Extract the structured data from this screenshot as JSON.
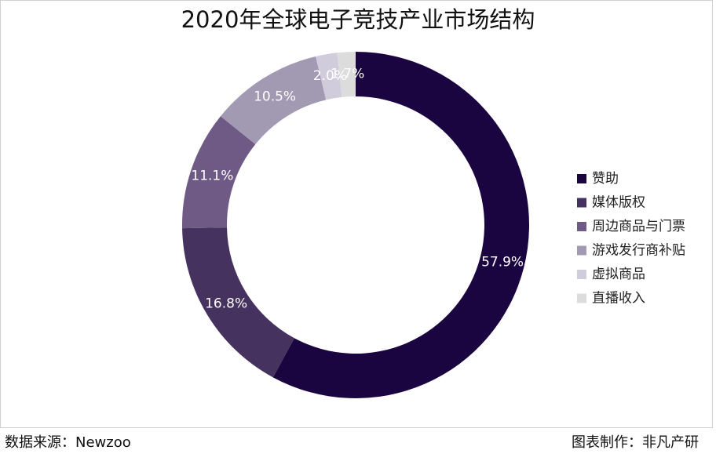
{
  "chart_data": {
    "type": "pie",
    "donut": true,
    "title": "2020年全球电子竞技产业市场结构",
    "categories": [
      "赞助",
      "媒体版权",
      "周边商品与门票",
      "游戏发行商补贴",
      "虚拟商品",
      "直播收入"
    ],
    "values": [
      57.9,
      16.8,
      11.1,
      10.5,
      2.0,
      1.7
    ],
    "value_labels": [
      "57.9%",
      "16.8%",
      "11.1%",
      "10.5%",
      "2.0%",
      "1.7%"
    ],
    "colors": [
      "#1a0540",
      "#45325f",
      "#6e5a85",
      "#a299b3",
      "#d1ccdc",
      "#dcdcdc"
    ],
    "legend": "right"
  },
  "footer": {
    "source": "数据来源：Newzoo",
    "credit": "图表制作：非凡产研"
  }
}
